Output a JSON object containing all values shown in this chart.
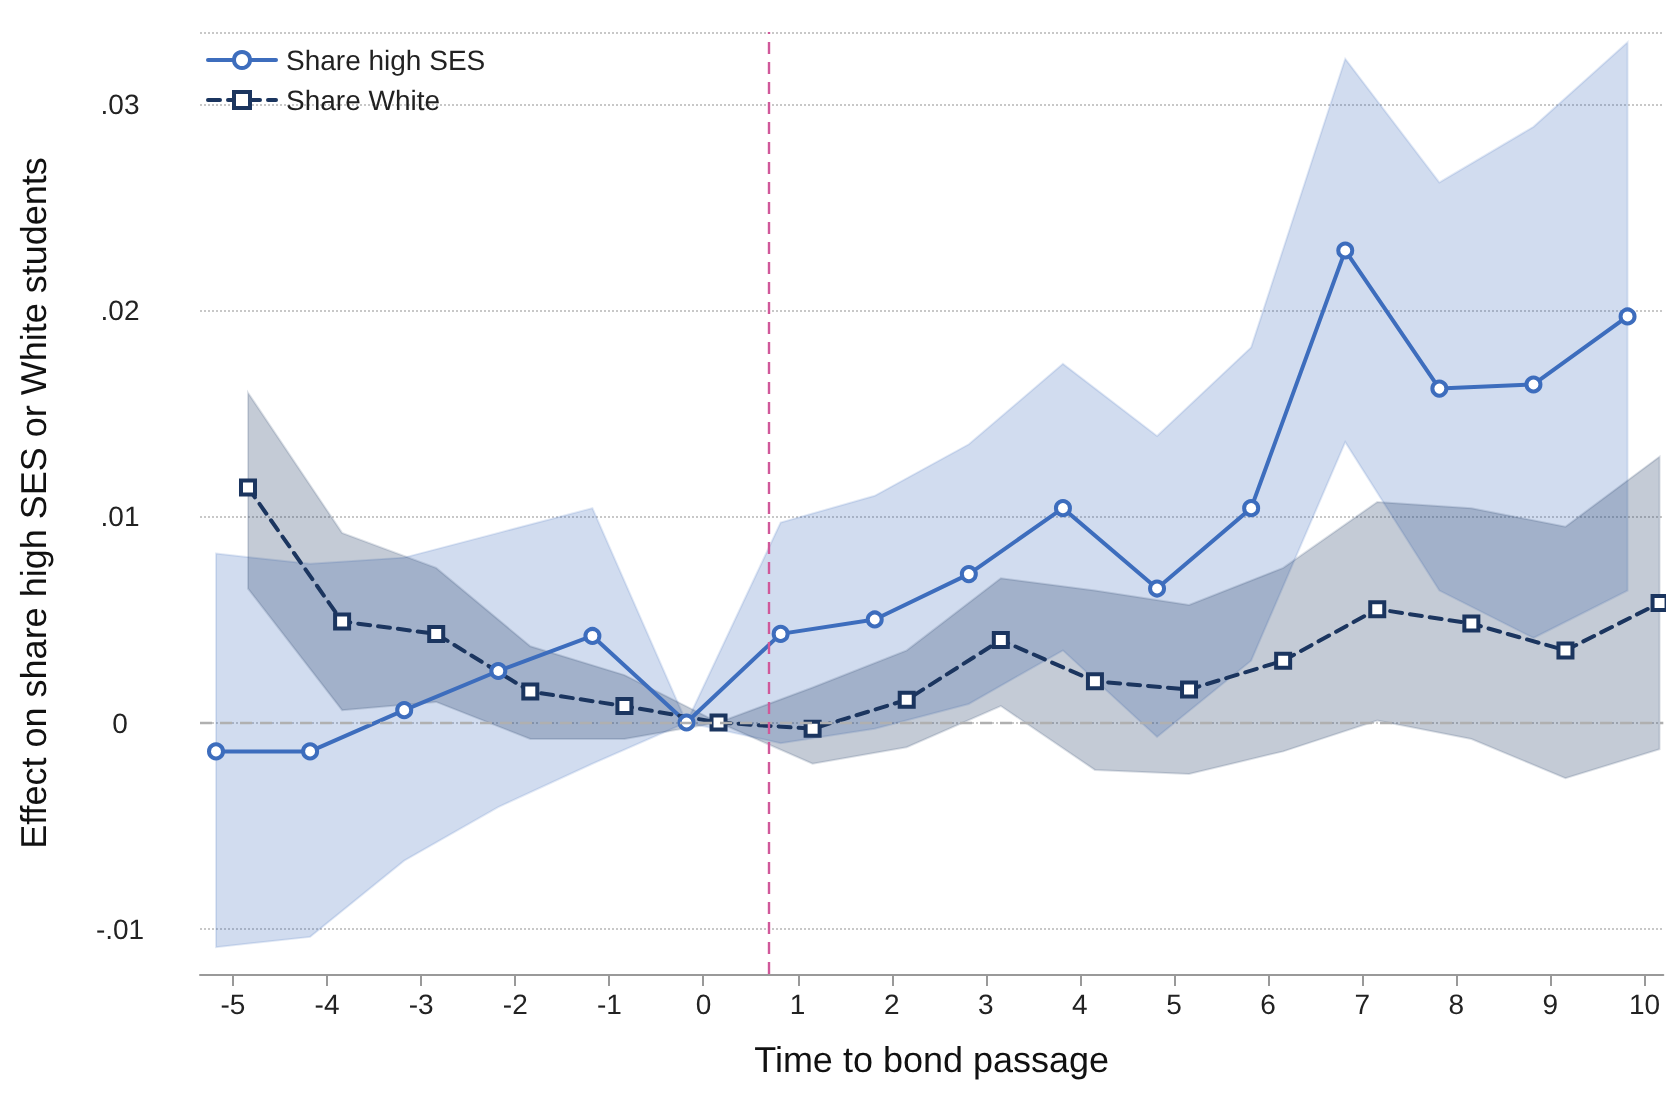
{
  "chart_data": {
    "type": "line",
    "xlabel": "Time to bond passage",
    "ylabel": "Effect on share high SES or White students",
    "xlim": [
      -5.35,
      10.2
    ],
    "xticks": [
      -5,
      -4,
      -3,
      -2,
      -1,
      0,
      1,
      2,
      3,
      4,
      5,
      6,
      7,
      8,
      9,
      10
    ],
    "ylim": [
      -0.0122,
      0.0335
    ],
    "yticks": [
      {
        "value": -0.01,
        "label": "-.01"
      },
      {
        "value": 0,
        "label": "0"
      },
      {
        "value": 0.01,
        "label": ".01"
      },
      {
        "value": 0.02,
        "label": ".02"
      },
      {
        "value": 0.03,
        "label": ".03"
      }
    ],
    "grid": "y",
    "legend": "top left",
    "series": [
      {
        "name": "Share high SES",
        "color": "#3d6dbd",
        "marker": "circle",
        "line_style": "solid",
        "x": [
          -5.18,
          -4.18,
          -3.18,
          -2.18,
          -1.18,
          -0.18,
          0.82,
          1.82,
          2.82,
          3.82,
          4.82,
          5.82,
          6.82,
          7.82,
          8.82,
          9.82
        ],
        "values": [
          -0.0014,
          -0.0014,
          0.0006,
          0.0025,
          0.0042,
          0,
          0.0043,
          0.005,
          0.0072,
          0.0104,
          0.0065,
          0.0104,
          0.0229,
          0.0162,
          0.0164,
          0.0197
        ],
        "lower": [
          -0.0109,
          -0.0104,
          -0.0067,
          -0.0041,
          -0.002,
          0,
          -0.001,
          -0.0003,
          0.0009,
          0.0035,
          -0.0007,
          0.003,
          0.0136,
          0.0064,
          0.0041,
          0.0064
        ],
        "upper": [
          0.0082,
          0.0077,
          0.008,
          0.0092,
          0.0104,
          0,
          0.0097,
          0.011,
          0.0135,
          0.0174,
          0.0139,
          0.0182,
          0.0322,
          0.0262,
          0.0289,
          0.033
        ]
      },
      {
        "name": "Share White",
        "color": "#1b355f",
        "marker": "square",
        "line_style": "dashed",
        "x": [
          -4.84,
          -3.84,
          -2.84,
          -1.84,
          -0.84,
          0.16,
          1.16,
          2.16,
          3.16,
          4.16,
          5.16,
          6.16,
          7.16,
          8.16,
          9.16,
          10.16
        ],
        "values": [
          0.0114,
          0.0049,
          0.0043,
          0.0015,
          0.0008,
          0,
          -0.0003,
          0.0011,
          0.004,
          0.002,
          0.0016,
          0.003,
          0.0055,
          0.0048,
          0.0035,
          0.0058
        ],
        "lower": [
          0.0065,
          0.0006,
          0.001,
          -0.0008,
          -0.0008,
          0,
          -0.002,
          -0.0012,
          0.0008,
          -0.0023,
          -0.0025,
          -0.0014,
          0.0001,
          -0.0008,
          -0.0027,
          -0.0013
        ],
        "upper": [
          0.016,
          0.0092,
          0.0075,
          0.0037,
          0.0023,
          0,
          0.0017,
          0.0035,
          0.007,
          0.0064,
          0.0057,
          0.0075,
          0.0107,
          0.0104,
          0.0095,
          0.0129
        ]
      }
    ],
    "ref_lines": [
      {
        "axis": "y",
        "value": 0,
        "color": "#b0b0b0",
        "line_style": "dashed"
      },
      {
        "axis": "x",
        "value": 0.7,
        "color": "#d0589a",
        "line_style": "dashed"
      }
    ]
  }
}
